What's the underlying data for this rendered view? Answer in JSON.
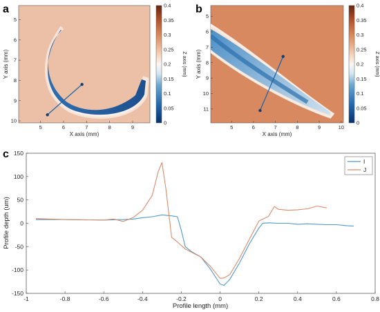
{
  "panels": {
    "a": {
      "letter": "a",
      "xlabel": "X axis (mm)",
      "ylabel": "Y axis (mm)",
      "xticks": [
        "5",
        "6",
        "7",
        "8",
        "9"
      ],
      "yticks": [
        "5",
        "6",
        "7",
        "8",
        "9",
        "10"
      ],
      "colorbar": {
        "label": "Z axis (mm)",
        "ticks": [
          "0.4",
          "0.35",
          "0.3",
          "0.25",
          "0.2",
          "0.15",
          "0.1",
          "0.05",
          "0"
        ]
      },
      "profile_line": {
        "x": [
          5.3,
          6.8
        ],
        "y": [
          9.7,
          8.2
        ]
      }
    },
    "b": {
      "letter": "b",
      "xlabel": "X axis (mm)",
      "ylabel": "Y axis (mm)",
      "xticks": [
        "5",
        "6",
        "7",
        "8",
        "9",
        "10"
      ],
      "yticks": [
        "5",
        "6",
        "7",
        "8",
        "9",
        "10",
        "11"
      ],
      "colorbar": {
        "label": "Z axis (mm)",
        "ticks": [
          "0.4",
          "0.35",
          "0.3",
          "0.25",
          "0.2",
          "0.15",
          "0.1",
          "0.05",
          "0"
        ]
      },
      "profile_line": {
        "x": [
          6.3,
          7.35
        ],
        "y": [
          11.1,
          7.6
        ]
      }
    }
  },
  "chart_data": {
    "type": "line",
    "letter": "c",
    "xlabel": "Profile length (mm)",
    "ylabel": "Profile depth (um)",
    "xlim": [
      -1,
      0.8
    ],
    "ylim": [
      -150,
      150
    ],
    "xticks": [
      "-1",
      "-0.8",
      "-0.6",
      "-0.4",
      "-0.2",
      "0",
      "0.2",
      "0.4",
      "0.6",
      "0.8"
    ],
    "yticks": [
      "150",
      "100",
      "50",
      "0",
      "-50",
      "-100",
      "-150"
    ],
    "legend_position": "top-right",
    "series": [
      {
        "name": "I",
        "color": "#4f97c8",
        "x": [
          -0.95,
          -0.8,
          -0.6,
          -0.5,
          -0.45,
          -0.4,
          -0.35,
          -0.3,
          -0.25,
          -0.22,
          -0.2,
          -0.18,
          -0.15,
          -0.1,
          -0.05,
          0.0,
          0.02,
          0.05,
          0.1,
          0.15,
          0.2,
          0.22,
          0.25,
          0.3,
          0.35,
          0.4,
          0.45,
          0.5,
          0.55,
          0.6,
          0.65,
          0.69
        ],
        "y": [
          8,
          8,
          7,
          8,
          9,
          12,
          14,
          18,
          16,
          14,
          -15,
          -50,
          -60,
          -72,
          -98,
          -130,
          -133,
          -120,
          -85,
          -45,
          -10,
          0,
          1,
          0,
          0,
          -2,
          -1,
          -2,
          -3,
          -3,
          -5,
          -6
        ]
      },
      {
        "name": "J",
        "color": "#d98a6a",
        "x": [
          -0.95,
          -0.8,
          -0.6,
          -0.55,
          -0.5,
          -0.45,
          -0.4,
          -0.35,
          -0.32,
          -0.3,
          -0.28,
          -0.25,
          -0.22,
          -0.18,
          -0.1,
          -0.05,
          0.0,
          0.02,
          0.05,
          0.1,
          0.15,
          0.2,
          0.25,
          0.28,
          0.3,
          0.35,
          0.4,
          0.45,
          0.5,
          0.55
        ],
        "y": [
          10,
          8,
          7,
          9,
          4,
          12,
          28,
          60,
          110,
          130,
          75,
          -30,
          -40,
          -55,
          -72,
          -92,
          -118,
          -117,
          -110,
          -75,
          -35,
          5,
          15,
          36,
          30,
          28,
          29,
          31,
          37,
          33
        ]
      }
    ]
  },
  "colors": {
    "cmap_low": "#08306b",
    "cmap_mid": "#ffffff",
    "cmap_high": "#67240d",
    "background_a": "#ecbfa7",
    "background_b": "#d8895f",
    "profile_line": "#1f66a8"
  }
}
